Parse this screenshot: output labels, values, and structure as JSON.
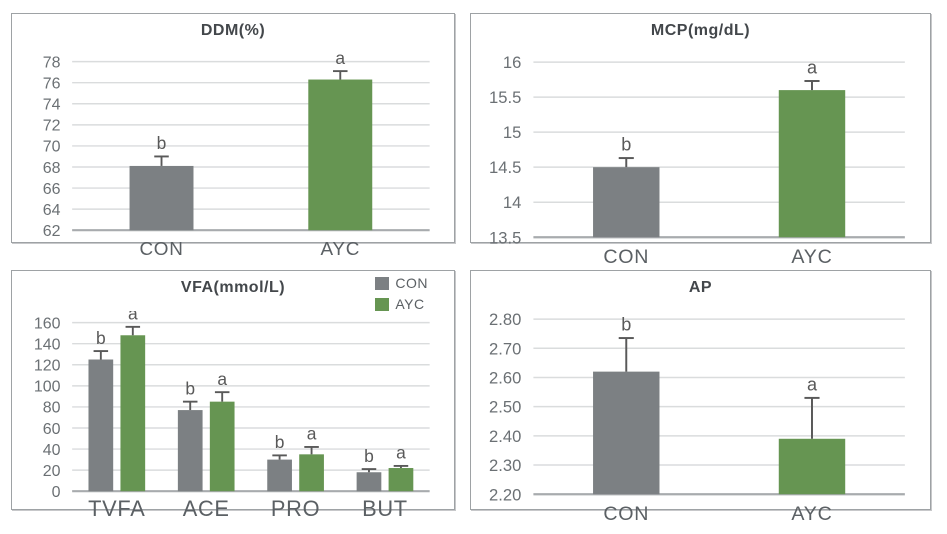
{
  "colors": {
    "series": {
      "CON": "#7C8083",
      "AYC": "#669552"
    },
    "grid": "#DADCDD",
    "baseline": "#A8ABAE",
    "error_bar": "#595959",
    "tick_text": "#6B7074",
    "category_text": "#5B6064",
    "letter_text": "#595959",
    "title_text": "#43474B",
    "panel_border": "#9EA2A5"
  },
  "legend": {
    "position": "top-right",
    "items": [
      {
        "label": "CON",
        "series": "CON"
      },
      {
        "label": "AYC",
        "series": "AYC"
      }
    ]
  },
  "chart_data": [
    {
      "type": "bar",
      "title": "DDM(%)",
      "xlabel": "",
      "ylabel": "",
      "grid": true,
      "ylim": [
        62,
        78
      ],
      "yticks": [
        "78",
        "76",
        "74",
        "72",
        "70",
        "68",
        "66",
        "64",
        "62"
      ],
      "category_font_size": 13,
      "groups": [
        {
          "label": "CON",
          "bars": [
            {
              "series": "CON",
              "value": 68.1,
              "error": 0.9,
              "letter": "b"
            }
          ]
        },
        {
          "label": "AYC",
          "bars": [
            {
              "series": "AYC",
              "value": 76.3,
              "error": 0.8,
              "letter": "a"
            }
          ]
        }
      ]
    },
    {
      "type": "bar",
      "title": "MCP(mg/dL)",
      "xlabel": "",
      "ylabel": "",
      "grid": true,
      "ylim": [
        13.5,
        16
      ],
      "yticks": [
        "16",
        "15.5",
        "15",
        "14.5",
        "14",
        "13.5"
      ],
      "category_font_size": 13,
      "groups": [
        {
          "label": "CON",
          "bars": [
            {
              "series": "CON",
              "value": 14.5,
              "error": 0.13,
              "letter": "b"
            }
          ]
        },
        {
          "label": "AYC",
          "bars": [
            {
              "series": "AYC",
              "value": 15.6,
              "error": 0.13,
              "letter": "a"
            }
          ]
        }
      ]
    },
    {
      "type": "bar",
      "title": "VFA(mmol/L)",
      "xlabel": "",
      "ylabel": "",
      "grid": true,
      "legend_position": "top-right",
      "ylim": [
        0,
        160
      ],
      "yticks": [
        "160",
        "140",
        "120",
        "100",
        "80",
        "60",
        "40",
        "20",
        "0"
      ],
      "category_font_size": 15,
      "groups": [
        {
          "label": "TVFA",
          "bars": [
            {
              "series": "CON",
              "value": 125,
              "error": 8,
              "letter": "b"
            },
            {
              "series": "AYC",
              "value": 148,
              "error": 8,
              "letter": "a"
            }
          ]
        },
        {
          "label": "ACE",
          "bars": [
            {
              "series": "CON",
              "value": 77,
              "error": 8,
              "letter": "b"
            },
            {
              "series": "AYC",
              "value": 85,
              "error": 9,
              "letter": "a"
            }
          ]
        },
        {
          "label": "PRO",
          "bars": [
            {
              "series": "CON",
              "value": 30,
              "error": 4,
              "letter": "b"
            },
            {
              "series": "AYC",
              "value": 35,
              "error": 7,
              "letter": "a"
            }
          ]
        },
        {
          "label": "BUT",
          "bars": [
            {
              "series": "CON",
              "value": 18,
              "error": 3,
              "letter": "b"
            },
            {
              "series": "AYC",
              "value": 22,
              "error": 2,
              "letter": "a"
            }
          ]
        }
      ]
    },
    {
      "type": "bar",
      "title": "AP",
      "xlabel": "",
      "ylabel": "",
      "grid": true,
      "ylim": [
        2.2,
        2.8
      ],
      "yticks": [
        "2.80",
        "2.70",
        "2.60",
        "2.50",
        "2.40",
        "2.30",
        "2.20"
      ],
      "category_font_size": 13,
      "groups": [
        {
          "label": "CON",
          "bars": [
            {
              "series": "CON",
              "value": 2.62,
              "error": 0.115,
              "letter": "b"
            }
          ]
        },
        {
          "label": "AYC",
          "bars": [
            {
              "series": "AYC",
              "value": 2.39,
              "error": 0.14,
              "letter": "a"
            }
          ]
        }
      ]
    }
  ]
}
